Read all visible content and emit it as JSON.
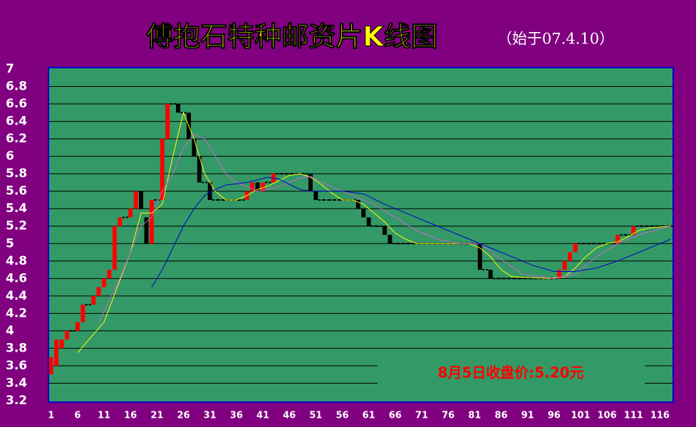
{
  "chart_data": {
    "type": "candlestick",
    "title": "傅抱石特种邮资片K线图",
    "subtitle": "（始于07.4.10）",
    "annotation": "8月5日收盘价:5.20元",
    "up_color": "#ff0000",
    "down_color": "#000000",
    "grid": true,
    "xlim": [
      0.5,
      118.5
    ],
    "ylim": [
      3.2,
      7
    ],
    "yticks": [
      3.2,
      3.4,
      3.6,
      3.8,
      4,
      4.2,
      4.4,
      4.6,
      4.8,
      5,
      5.2,
      5.4,
      5.6,
      5.8,
      6,
      6.2,
      6.4,
      6.6,
      6.8,
      7
    ],
    "xticks": [
      1,
      6,
      11,
      16,
      21,
      26,
      31,
      36,
      41,
      46,
      51,
      56,
      61,
      66,
      71,
      76,
      81,
      86,
      91,
      96,
      101,
      106,
      111,
      116
    ],
    "x": [
      1,
      2,
      3,
      4,
      5,
      6,
      7,
      8,
      9,
      10,
      11,
      12,
      13,
      14,
      15,
      16,
      17,
      18,
      19,
      20,
      21,
      22,
      23,
      24,
      25,
      26,
      27,
      28,
      29,
      30,
      31,
      32,
      33,
      34,
      35,
      36,
      37,
      38,
      39,
      40,
      41,
      42,
      43,
      44,
      45,
      46,
      47,
      48,
      49,
      50,
      51,
      52,
      53,
      54,
      55,
      56,
      57,
      58,
      59,
      60,
      61,
      62,
      63,
      64,
      65,
      66,
      67,
      68,
      69,
      70,
      71,
      72,
      73,
      74,
      75,
      76,
      77,
      78,
      79,
      80,
      81,
      82,
      83,
      84,
      85,
      86,
      87,
      88,
      89,
      90,
      91,
      92,
      93,
      94,
      95,
      96,
      97,
      98,
      99,
      100,
      101,
      102,
      103,
      104,
      105,
      106,
      107,
      108,
      109,
      110,
      111,
      112,
      113,
      114,
      115,
      116,
      117,
      118
    ],
    "open": [
      3.5,
      3.6,
      3.8,
      3.9,
      4,
      4,
      4.1,
      4.3,
      4.3,
      4.4,
      4.5,
      4.6,
      4.7,
      5.2,
      5.3,
      5.3,
      5.4,
      5.6,
      5.3,
      5,
      5.5,
      5.5,
      6.2,
      6.6,
      6.6,
      6.5,
      6.5,
      6.2,
      6,
      5.7,
      5.7,
      5.5,
      5.5,
      5.5,
      5.5,
      5.5,
      5.5,
      5.5,
      5.6,
      5.7,
      5.6,
      5.7,
      5.7,
      5.8,
      5.8,
      5.8,
      5.8,
      5.8,
      5.8,
      5.8,
      5.6,
      5.5,
      5.5,
      5.5,
      5.5,
      5.5,
      5.5,
      5.5,
      5.5,
      5.4,
      5.3,
      5.2,
      5.2,
      5.2,
      5.1,
      5,
      5,
      5,
      5,
      5,
      5,
      5,
      5,
      5,
      5,
      5,
      5,
      5,
      5,
      5,
      5,
      5,
      4.7,
      4.7,
      4.6,
      4.6,
      4.6,
      4.6,
      4.6,
      4.6,
      4.6,
      4.6,
      4.6,
      4.6,
      4.6,
      4.6,
      4.6,
      4.7,
      4.8,
      4.9,
      5,
      5,
      5,
      5,
      5,
      5,
      5,
      5,
      5.1,
      5.1,
      5.1,
      5.2,
      5.2,
      5.2,
      5.2,
      5.2,
      5.2,
      5.2
    ],
    "close": [
      3.7,
      3.9,
      3.9,
      4,
      4,
      4.1,
      4.3,
      4.3,
      4.4,
      4.5,
      4.6,
      4.7,
      5.2,
      5.3,
      5.3,
      5.4,
      5.6,
      5.4,
      5,
      5.5,
      5.5,
      6.2,
      6.6,
      6.6,
      6.5,
      6.5,
      6.2,
      6,
      5.7,
      5.7,
      5.5,
      5.5,
      5.5,
      5.5,
      5.5,
      5.5,
      5.5,
      5.6,
      5.7,
      5.6,
      5.7,
      5.7,
      5.8,
      5.8,
      5.8,
      5.8,
      5.8,
      5.8,
      5.8,
      5.6,
      5.5,
      5.5,
      5.5,
      5.5,
      5.5,
      5.5,
      5.5,
      5.5,
      5.4,
      5.3,
      5.2,
      5.2,
      5.2,
      5.1,
      5,
      5,
      5,
      5,
      5,
      5,
      5,
      5,
      5,
      5,
      5,
      5,
      5,
      5,
      5,
      5,
      5,
      4.7,
      4.7,
      4.6,
      4.6,
      4.6,
      4.6,
      4.6,
      4.6,
      4.6,
      4.6,
      4.6,
      4.6,
      4.6,
      4.6,
      4.6,
      4.7,
      4.8,
      4.9,
      5,
      5,
      5,
      5,
      5,
      5,
      5,
      5,
      5.1,
      5.1,
      5.1,
      5.2,
      5.2,
      5.2,
      5.2,
      5.2,
      5.2,
      5.2,
      5.2
    ],
    "series": [
      {
        "color": "#ffff00",
        "x": [
          6,
          11,
          16,
          18,
          20,
          22,
          24,
          26,
          28,
          30,
          32,
          34,
          36,
          38,
          40,
          42,
          44,
          46,
          48,
          50,
          52,
          54,
          56,
          58,
          60,
          62,
          64,
          66,
          68,
          70,
          80,
          82,
          84,
          86,
          88,
          95,
          98,
          100,
          102,
          104,
          106,
          108,
          110,
          112,
          114,
          118
        ],
        "values": [
          3.75,
          4.1,
          4.9,
          5.35,
          5.35,
          5.45,
          6,
          6.5,
          6.2,
          5.8,
          5.6,
          5.5,
          5.5,
          5.55,
          5.62,
          5.66,
          5.72,
          5.78,
          5.8,
          5.76,
          5.68,
          5.58,
          5.5,
          5.5,
          5.45,
          5.35,
          5.25,
          5.12,
          5.05,
          5,
          5,
          4.95,
          4.85,
          4.7,
          4.62,
          4.6,
          4.62,
          4.72,
          4.85,
          4.95,
          5,
          5.02,
          5.08,
          5.15,
          5.18,
          5.2
        ]
      },
      {
        "color": "#cc66cc",
        "x": [
          10,
          14,
          16,
          18,
          20,
          22,
          24,
          26,
          28,
          30,
          32,
          34,
          36,
          38,
          40,
          44,
          48,
          50,
          54,
          58,
          62,
          66,
          70,
          74,
          78,
          82,
          86,
          90,
          96,
          100,
          104,
          108,
          112,
          118
        ],
        "values": [
          4.1,
          4.6,
          4.9,
          5.2,
          5.3,
          5.6,
          5.8,
          6.1,
          6.25,
          6.2,
          6,
          5.8,
          5.7,
          5.65,
          5.6,
          5.65,
          5.75,
          5.77,
          5.65,
          5.55,
          5.45,
          5.3,
          5.15,
          5.05,
          5,
          5,
          4.82,
          4.65,
          4.6,
          4.65,
          4.85,
          5,
          5.1,
          5.2
        ]
      },
      {
        "color": "#0000cc",
        "x": [
          20,
          22,
          24,
          26,
          28,
          30,
          32,
          34,
          38,
          42,
          44,
          46,
          48,
          50,
          56,
          60,
          64,
          68,
          72,
          76,
          80,
          84,
          88,
          92,
          96,
          100,
          104,
          108,
          112,
          118
        ],
        "values": [
          4.5,
          4.7,
          4.95,
          5.2,
          5.4,
          5.55,
          5.62,
          5.67,
          5.7,
          5.76,
          5.74,
          5.68,
          5.62,
          5.6,
          5.6,
          5.57,
          5.45,
          5.35,
          5.25,
          5.15,
          5.05,
          4.95,
          4.85,
          4.75,
          4.68,
          4.68,
          4.72,
          4.8,
          4.9,
          5.05
        ]
      }
    ]
  }
}
